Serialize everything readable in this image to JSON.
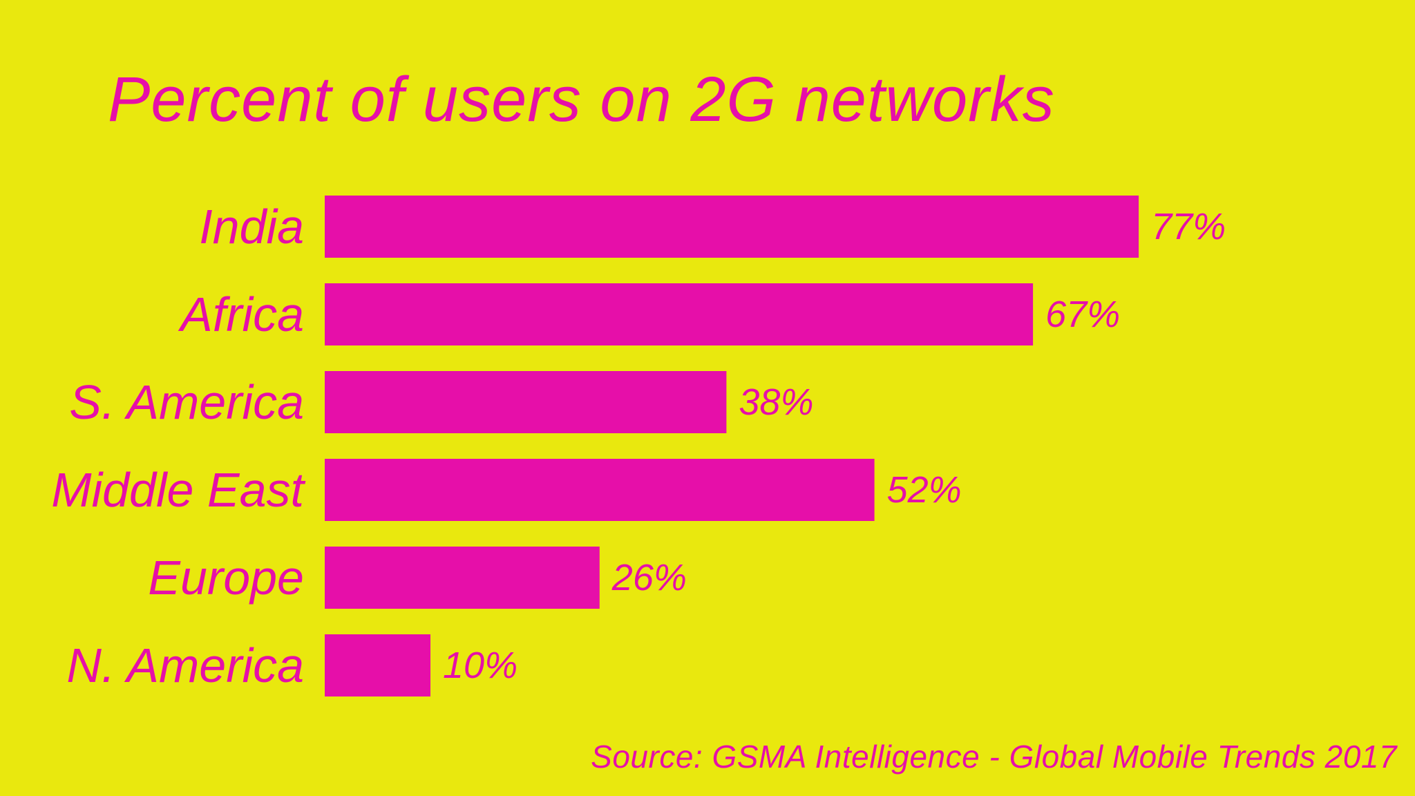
{
  "chart_data": {
    "type": "bar",
    "orientation": "horizontal",
    "title": "Percent of users on 2G networks",
    "categories": [
      "India",
      "Africa",
      "S. America",
      "Middle East",
      "Europe",
      "N. America"
    ],
    "values": [
      77,
      67,
      38,
      52,
      26,
      10
    ],
    "value_labels": [
      "77%",
      "67%",
      "38%",
      "52%",
      "26%",
      "10%"
    ],
    "xlim": [
      0,
      100
    ],
    "xlabel": "",
    "ylabel": "",
    "grid": false,
    "legend": "none",
    "source": "Source: GSMA Intelligence - Global Mobile Trends 2017"
  },
  "colors": {
    "background": "#e9e80e",
    "bar": "#e60fa9",
    "text": "#e60fa9"
  }
}
